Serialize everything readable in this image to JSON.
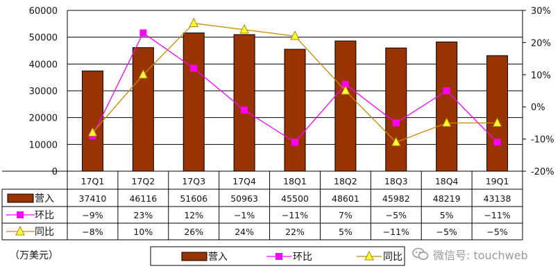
{
  "chart_data": {
    "type": "bar",
    "categories": [
      "17Q1",
      "17Q2",
      "17Q3",
      "17Q4",
      "18Q1",
      "18Q2",
      "18Q3",
      "18Q4",
      "19Q1"
    ],
    "series": [
      {
        "name": "营入",
        "kind": "bar",
        "axis": "left",
        "color": "#993300",
        "values": [
          37410,
          46116,
          51606,
          50963,
          45500,
          48601,
          45982,
          48219,
          43138
        ],
        "labels": [
          "37410",
          "46116",
          "51606",
          "50963",
          "45500",
          "48601",
          "45982",
          "48219",
          "43138"
        ]
      },
      {
        "name": "环比",
        "kind": "line",
        "axis": "right",
        "marker": "square",
        "color": "#ff00ff",
        "values": [
          -9,
          23,
          12,
          -1,
          -11,
          7,
          -5,
          5,
          -11
        ],
        "labels": [
          "−9%",
          "23%",
          "12%",
          "−1%",
          "−11%",
          "7%",
          "−5%",
          "5%",
          "−11%"
        ]
      },
      {
        "name": "同比",
        "kind": "line",
        "axis": "right",
        "marker": "triangle",
        "color": "#cc8800",
        "values": [
          -8,
          10,
          26,
          24,
          22,
          5,
          -11,
          -5,
          -5
        ],
        "labels": [
          "−8%",
          "10%",
          "26%",
          "24%",
          "22%",
          "5%",
          "−11%",
          "−5%",
          "−5%"
        ]
      }
    ],
    "left_axis": {
      "min": 0,
      "max": 60000,
      "ticks": [
        "0",
        "10000",
        "20000",
        "30000",
        "40000",
        "50000",
        "60000"
      ]
    },
    "right_axis": {
      "min": -20,
      "max": 30,
      "ticks": [
        "-20%",
        "-10%",
        "0%",
        "10%",
        "20%",
        "30%"
      ]
    },
    "unit_label": "（万美元）",
    "grid": true,
    "legend_position": "bottom",
    "data_table": true
  },
  "watermark": {
    "text": "微信号: touchweb",
    "icon": "wechat-bubble-icon"
  }
}
